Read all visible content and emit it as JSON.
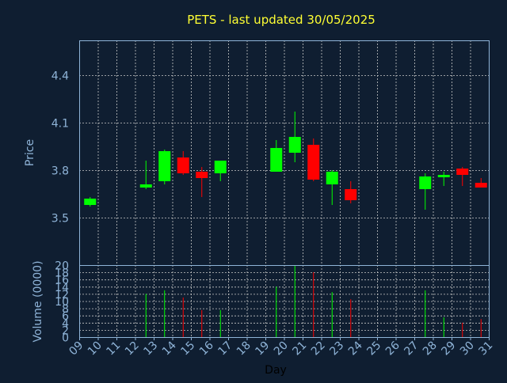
{
  "chart_data": {
    "type": "candlestick",
    "title": "PETS - last updated 30/05/2025",
    "xlabel": "Day",
    "ylabel": "Price",
    "volume_label": "Volume (0000)",
    "price_ylim": [
      3.2,
      4.62
    ],
    "price_ticks": [
      "3.5",
      "3.8",
      "4.1",
      "4.4"
    ],
    "volume_ylim": [
      0,
      20
    ],
    "volume_ticks": [
      "0",
      "2",
      "4",
      "6",
      "8",
      "10",
      "12",
      "14",
      "16",
      "18",
      "20"
    ],
    "x_ticks": [
      "09",
      "10",
      "11",
      "12",
      "13",
      "14",
      "15",
      "16",
      "17",
      "18",
      "19",
      "20",
      "21",
      "22",
      "23",
      "24",
      "25",
      "26",
      "27",
      "28",
      "29",
      "30",
      "31"
    ],
    "grid": true,
    "colors": {
      "background": "#0f1e31",
      "axis": "#8fb4d8",
      "grid": "#c8c8c8",
      "title": "#ffff33",
      "up": "#00ff00",
      "down": "#ff0000"
    },
    "candles": [
      {
        "day": "09",
        "open": 3.58,
        "high": 3.63,
        "low": 3.57,
        "close": 3.62,
        "volume": 0
      },
      {
        "day": "12",
        "open": 3.69,
        "high": 3.86,
        "low": 3.68,
        "close": 3.71,
        "volume": 12
      },
      {
        "day": "13",
        "open": 3.73,
        "high": 3.93,
        "low": 3.71,
        "close": 3.92,
        "volume": 13
      },
      {
        "day": "14",
        "open": 3.88,
        "high": 3.92,
        "low": 3.77,
        "close": 3.78,
        "volume": 11
      },
      {
        "day": "15",
        "open": 3.79,
        "high": 3.82,
        "low": 3.63,
        "close": 3.75,
        "volume": 7.5
      },
      {
        "day": "16",
        "open": 3.78,
        "high": 3.86,
        "low": 3.73,
        "close": 3.86,
        "volume": 7.5
      },
      {
        "day": "19",
        "open": 3.79,
        "high": 3.99,
        "low": 3.79,
        "close": 3.94,
        "volume": 14
      },
      {
        "day": "20",
        "open": 3.91,
        "high": 4.17,
        "low": 3.85,
        "close": 4.01,
        "volume": 20
      },
      {
        "day": "21",
        "open": 3.96,
        "high": 4.0,
        "low": 3.73,
        "close": 3.74,
        "volume": 18
      },
      {
        "day": "22",
        "open": 3.71,
        "high": 3.8,
        "low": 3.58,
        "close": 3.79,
        "volume": 12.5
      },
      {
        "day": "23",
        "open": 3.68,
        "high": 3.73,
        "low": 3.59,
        "close": 3.61,
        "volume": 10.5
      },
      {
        "day": "27",
        "open": 3.68,
        "high": 3.78,
        "low": 3.55,
        "close": 3.76,
        "volume": 13
      },
      {
        "day": "28",
        "open": 3.76,
        "high": 3.79,
        "low": 3.7,
        "close": 3.77,
        "volume": 5.5
      },
      {
        "day": "29",
        "open": 3.81,
        "high": 3.82,
        "low": 3.7,
        "close": 3.77,
        "volume": 4
      },
      {
        "day": "30",
        "open": 3.72,
        "high": 3.75,
        "low": 3.69,
        "close": 3.69,
        "volume": 5
      }
    ]
  }
}
